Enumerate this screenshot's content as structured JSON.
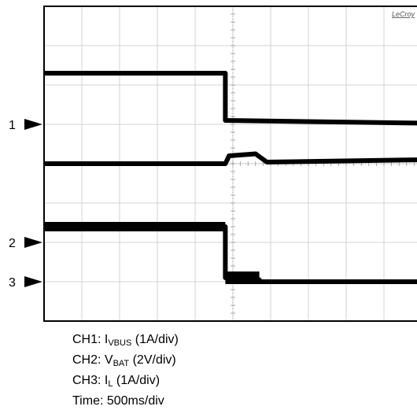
{
  "chart_data": {
    "type": "line",
    "brand": "LeCroy",
    "instrument_note": "oscilloscope capture, 10 horizontal divisions x 8 vertical divisions",
    "grid": true,
    "xlim_div": [
      0,
      10
    ],
    "ylim_div": [
      0,
      8
    ],
    "channel_markers": [
      {
        "label": "1",
        "level_div": 5
      },
      {
        "label": "2",
        "level_div": 2
      },
      {
        "label": "3",
        "level_div": 1
      }
    ],
    "series": [
      {
        "name": "CH1: I_VBUS (1A/div)",
        "units_per_div": "1A",
        "x_div": [
          0,
          4.8,
          4.8,
          10
        ],
        "y_div": [
          6.3,
          6.3,
          5.1,
          5.03
        ]
      },
      {
        "name": "CH2: V_BAT (2V/div)",
        "units_per_div": "2V",
        "x_div": [
          0,
          4.8,
          4.9,
          5.6,
          5.9,
          10
        ],
        "y_div": [
          4.0,
          4.0,
          4.2,
          4.25,
          4.04,
          4.1
        ]
      },
      {
        "name": "CH3: I_L (1A/div)",
        "units_per_div": "1A",
        "x_div": [
          0,
          4.8,
          4.8,
          5.7,
          5.7,
          10
        ],
        "y_div": [
          2.4,
          2.4,
          1.1,
          1.05,
          1.0,
          1.0
        ]
      }
    ]
  },
  "legend": {
    "ch1_prefix": "CH1: I",
    "ch1_sub": "VBUS",
    "ch1_suffix": " (1A/div)",
    "ch2_prefix": "CH2: V",
    "ch2_sub": "BAT",
    "ch2_suffix": " (2V/div)",
    "ch3_prefix": "CH3: I",
    "ch3_sub": "L",
    "ch3_suffix": " (1A/div)",
    "time": "Time: 500ms/div"
  }
}
